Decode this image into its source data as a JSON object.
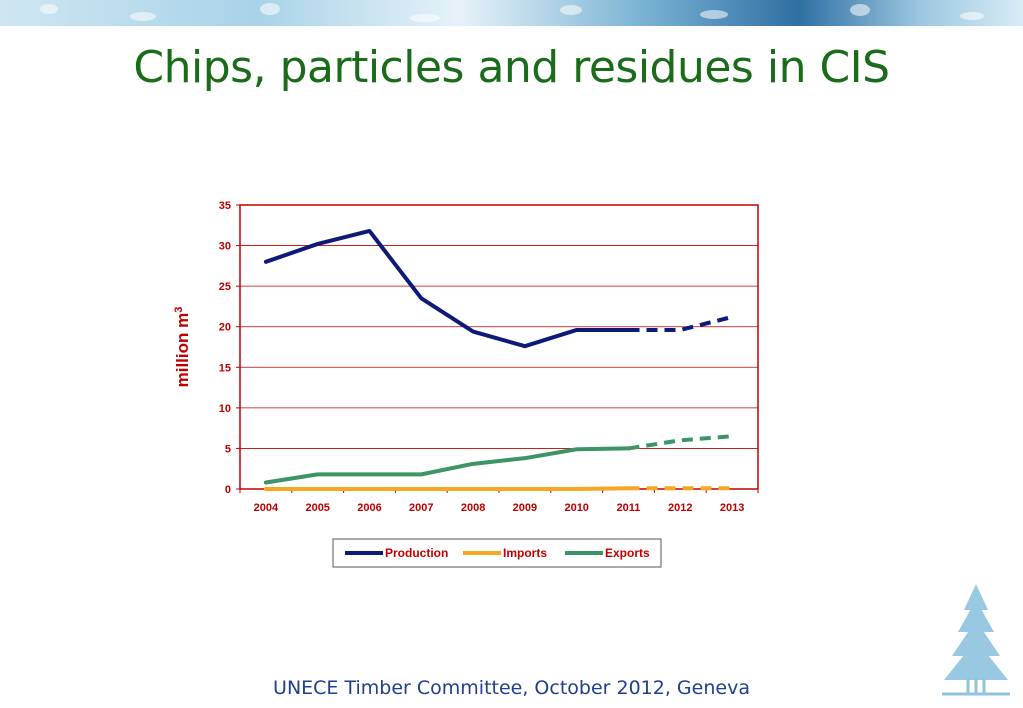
{
  "slide": {
    "title": "Chips, particles and residues in CIS",
    "footer": "UNECE Timber Committee, October 2012, Geneva"
  },
  "colors": {
    "title": "#1a6b1a",
    "footer": "#1f3f8f",
    "axis": "#c00000",
    "tick_label": "#c00000",
    "legend_text": "#c00000"
  },
  "chart_data": {
    "type": "line",
    "title": "",
    "xlabel": "",
    "ylabel": "million m",
    "ylabel_superscript": "3",
    "ylim": [
      0,
      35
    ],
    "yticks": [
      0,
      5,
      10,
      15,
      20,
      25,
      30,
      35
    ],
    "categories": [
      "2004",
      "2005",
      "2006",
      "2007",
      "2008",
      "2009",
      "2010",
      "2011",
      "2012",
      "2013"
    ],
    "forecast_from": "2011",
    "grid": true,
    "legend_position": "bottom",
    "series": [
      {
        "name": "Production",
        "color": "#0d1a7a",
        "values": [
          28,
          30.2,
          31.8,
          23.5,
          19.4,
          17.6,
          19.6,
          19.6,
          19.6,
          21.2
        ]
      },
      {
        "name": "Imports",
        "color": "#f5a623",
        "values": [
          0,
          0,
          0,
          0,
          0,
          0,
          0,
          0.1,
          0.1,
          0.1
        ]
      },
      {
        "name": "Exports",
        "color": "#3d9466",
        "values": [
          0.8,
          1.8,
          1.8,
          1.8,
          3.1,
          3.8,
          4.9,
          5.0,
          6.0,
          6.5
        ]
      }
    ]
  }
}
